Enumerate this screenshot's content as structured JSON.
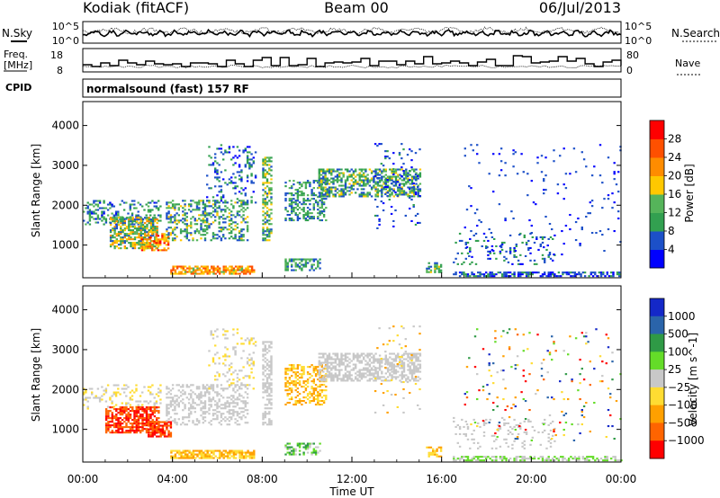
{
  "header": {
    "station": "Kodiak (fitACF)",
    "beam": "Beam 00",
    "date": "06/Jul/2013"
  },
  "summary": {
    "nsky_label": "N.Sky",
    "nsearch_label": "N.Search",
    "noise_axis_top": "10^5",
    "noise_axis_bottom": "10^0",
    "noise_axis_top_right": "10^5",
    "noise_axis_bottom_right": "10^0",
    "freq_label_line1": "Freq.",
    "freq_label_line2": "[MHz]",
    "freq_ticks": [
      "18",
      "8"
    ],
    "nave_label": "Nave",
    "nave_ticks": [
      "80",
      "0"
    ],
    "cpid_label": "CPID",
    "cpid_text": "normalsound (fast) 157 RF"
  },
  "x_axis": {
    "label": "Time UT",
    "ticks": [
      "00:00",
      "04:00",
      "08:00",
      "12:00",
      "16:00",
      "20:00",
      "00:00"
    ]
  },
  "colors": {
    "power": [
      "#0000ff",
      "#1c50c8",
      "#32a050",
      "#55b45a",
      "#ffc800",
      "#ff8c00",
      "#ff5000",
      "#ff0000"
    ],
    "velocity": [
      "#1428c8",
      "#2a64aa",
      "#2f9a46",
      "#64dc28",
      "#c8c8c8",
      "#ffdc32",
      "#ffa000",
      "#ff6400",
      "#ff0000"
    ]
  },
  "chart_data": [
    {
      "type": "heatmap",
      "title": "",
      "xlabel": "",
      "ylabel": "Slant Range [km]",
      "x_range_hours": [
        0,
        24
      ],
      "ylim": [
        180,
        4600
      ],
      "yticks": [
        1000,
        2000,
        3000,
        4000
      ],
      "colorbar_label": "Power [dB]",
      "colorbar_ticks": [
        4,
        8,
        12,
        16,
        20,
        24,
        28
      ],
      "colorbar_range": [
        0,
        32
      ],
      "regions": [
        {
          "t0": 0.0,
          "t1": 3.5,
          "r0": 1500,
          "r1": 2100,
          "density": 0.3,
          "v0": 3,
          "v1": 14
        },
        {
          "t0": 1.2,
          "t1": 3.3,
          "r0": 900,
          "r1": 1700,
          "density": 0.65,
          "v0": 6,
          "v1": 22
        },
        {
          "t0": 2.6,
          "t1": 3.8,
          "r0": 850,
          "r1": 1300,
          "density": 0.6,
          "v0": 16,
          "v1": 30
        },
        {
          "t0": 3.7,
          "t1": 7.3,
          "r0": 1100,
          "r1": 2100,
          "density": 0.35,
          "v0": 4,
          "v1": 18
        },
        {
          "t0": 3.9,
          "t1": 7.6,
          "r0": 260,
          "r1": 480,
          "density": 0.75,
          "v0": 14,
          "v1": 28
        },
        {
          "t0": 5.5,
          "t1": 7.7,
          "r0": 2000,
          "r1": 3500,
          "density": 0.18,
          "v0": 2,
          "v1": 12
        },
        {
          "t0": 8.0,
          "t1": 8.4,
          "r0": 1100,
          "r1": 3200,
          "density": 0.55,
          "v0": 6,
          "v1": 20
        },
        {
          "t0": 9.0,
          "t1": 10.8,
          "r0": 1600,
          "r1": 2600,
          "density": 0.45,
          "v0": 4,
          "v1": 16
        },
        {
          "t0": 9.0,
          "t1": 10.6,
          "r0": 350,
          "r1": 650,
          "density": 0.55,
          "v0": 4,
          "v1": 16
        },
        {
          "t0": 10.5,
          "t1": 15.0,
          "r0": 2200,
          "r1": 2900,
          "density": 0.55,
          "v0": 4,
          "v1": 18
        },
        {
          "t0": 13.0,
          "t1": 15.0,
          "r0": 1400,
          "r1": 3600,
          "density": 0.08,
          "v0": 2,
          "v1": 10
        },
        {
          "t0": 15.3,
          "t1": 16.0,
          "r0": 300,
          "r1": 550,
          "density": 0.5,
          "v0": 6,
          "v1": 18
        },
        {
          "t0": 16.5,
          "t1": 21.0,
          "r0": 500,
          "r1": 1300,
          "density": 0.12,
          "v0": 2,
          "v1": 12
        },
        {
          "t0": 16.5,
          "t1": 24.0,
          "r0": 200,
          "r1": 330,
          "density": 0.6,
          "v0": 2,
          "v1": 10
        },
        {
          "t0": 17.0,
          "t1": 24.0,
          "r0": 700,
          "r1": 3500,
          "density": 0.03,
          "v0": 2,
          "v1": 8
        }
      ]
    },
    {
      "type": "heatmap",
      "title": "",
      "xlabel": "Time UT",
      "ylabel": "Slant Range [km]",
      "x_range_hours": [
        0,
        24
      ],
      "ylim": [
        180,
        4600
      ],
      "yticks": [
        1000,
        2000,
        3000,
        4000
      ],
      "colorbar_label": "Velocity [m s^-1]",
      "colorbar_ticks": [
        "1000",
        "500",
        "100",
        "25",
        "−25",
        "−100",
        "−500",
        "−1000"
      ],
      "regions": [
        {
          "t0": 0.0,
          "t1": 3.5,
          "r0": 1500,
          "r1": 2100,
          "density": 0.2,
          "c": [
            4,
            5
          ]
        },
        {
          "t0": 1.0,
          "t1": 3.4,
          "r0": 900,
          "r1": 1550,
          "density": 0.7,
          "c": [
            7,
            8
          ]
        },
        {
          "t0": 2.8,
          "t1": 3.9,
          "r0": 800,
          "r1": 1200,
          "density": 0.6,
          "c": [
            7,
            8
          ]
        },
        {
          "t0": 3.7,
          "t1": 7.3,
          "r0": 1100,
          "r1": 2100,
          "density": 0.35,
          "c": [
            4,
            4
          ]
        },
        {
          "t0": 3.9,
          "t1": 7.6,
          "r0": 260,
          "r1": 480,
          "density": 0.75,
          "c": [
            5,
            6
          ]
        },
        {
          "t0": 5.5,
          "t1": 7.7,
          "r0": 2000,
          "r1": 3500,
          "density": 0.15,
          "c": [
            4,
            5
          ]
        },
        {
          "t0": 8.0,
          "t1": 8.4,
          "r0": 1100,
          "r1": 3200,
          "density": 0.55,
          "c": [
            4,
            4
          ]
        },
        {
          "t0": 9.0,
          "t1": 10.8,
          "r0": 1600,
          "r1": 2600,
          "density": 0.45,
          "c": [
            5,
            6
          ]
        },
        {
          "t0": 9.0,
          "t1": 10.6,
          "r0": 350,
          "r1": 650,
          "density": 0.5,
          "c": [
            2,
            4
          ]
        },
        {
          "t0": 10.5,
          "t1": 15.0,
          "r0": 2200,
          "r1": 2900,
          "density": 0.55,
          "c": [
            4,
            4
          ]
        },
        {
          "t0": 13.0,
          "t1": 15.0,
          "r0": 1400,
          "r1": 3600,
          "density": 0.06,
          "c": [
            4,
            6
          ]
        },
        {
          "t0": 15.3,
          "t1": 16.0,
          "r0": 300,
          "r1": 550,
          "density": 0.5,
          "c": [
            5,
            6
          ]
        },
        {
          "t0": 16.5,
          "t1": 21.0,
          "r0": 500,
          "r1": 1300,
          "density": 0.12,
          "c": [
            4,
            4
          ]
        },
        {
          "t0": 16.5,
          "t1": 24.0,
          "r0": 200,
          "r1": 330,
          "density": 0.55,
          "c": [
            3,
            4
          ]
        },
        {
          "t0": 17.0,
          "t1": 24.0,
          "r0": 700,
          "r1": 3500,
          "density": 0.03,
          "c": [
            0,
            8
          ]
        }
      ]
    }
  ]
}
